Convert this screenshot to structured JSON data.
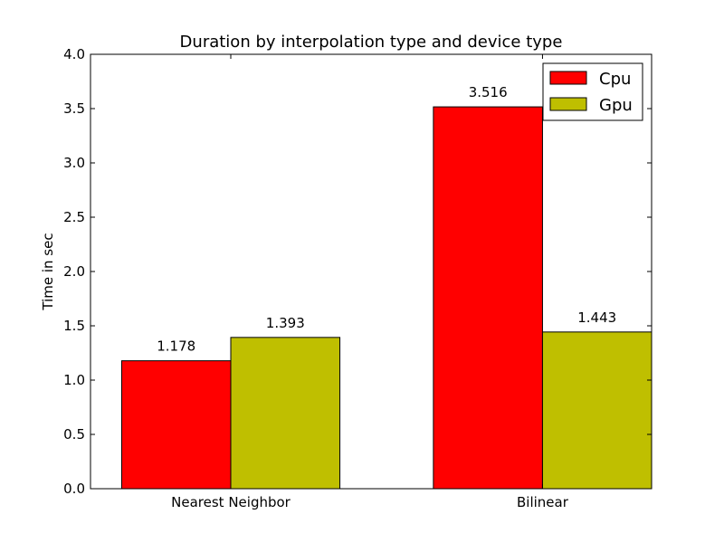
{
  "chart_data": {
    "type": "bar",
    "title": "Duration by interpolation type and device type",
    "xlabel": "",
    "ylabel": "Time in sec",
    "categories": [
      "Nearest Neighbor",
      "Bilinear"
    ],
    "series": [
      {
        "name": "Cpu",
        "color": "#ff0000",
        "values": [
          1.178,
          3.516
        ],
        "labels": [
          "1.178",
          "3.516"
        ]
      },
      {
        "name": "Gpu",
        "color": "#bfbf00",
        "values": [
          1.393,
          1.443
        ],
        "labels": [
          "1.393",
          "1.443"
        ]
      }
    ],
    "ylim": [
      0,
      4.0
    ],
    "yticks": [
      0.0,
      0.5,
      1.0,
      1.5,
      2.0,
      2.5,
      3.0,
      3.5,
      4.0
    ],
    "ytick_labels": [
      "0.0",
      "0.5",
      "1.0",
      "1.5",
      "2.0",
      "2.5",
      "3.0",
      "3.5",
      "4.0"
    ],
    "grid": false,
    "legend_position": "top-right"
  }
}
